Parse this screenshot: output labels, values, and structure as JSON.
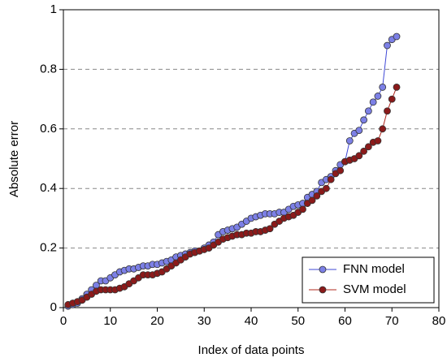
{
  "chart_data": {
    "type": "line",
    "xlabel": "Index of data points",
    "ylabel": "Absolute error",
    "x": [
      1,
      2,
      3,
      4,
      5,
      6,
      7,
      8,
      9,
      10,
      11,
      12,
      13,
      14,
      15,
      16,
      17,
      18,
      19,
      20,
      21,
      22,
      23,
      24,
      25,
      26,
      27,
      28,
      29,
      30,
      31,
      32,
      33,
      34,
      35,
      36,
      37,
      38,
      39,
      40,
      41,
      42,
      43,
      44,
      45,
      46,
      47,
      48,
      49,
      50,
      51,
      52,
      53,
      54,
      55,
      56,
      57,
      58,
      59,
      60,
      61,
      62,
      63,
      64,
      65,
      66,
      67,
      68,
      69,
      70,
      71
    ],
    "series": [
      {
        "name": "FNN model",
        "color": "#3f48d6",
        "marker_color": "#7c80e6",
        "values": [
          0.005,
          0.01,
          0.015,
          0.03,
          0.045,
          0.06,
          0.075,
          0.09,
          0.09,
          0.1,
          0.11,
          0.12,
          0.125,
          0.13,
          0.13,
          0.135,
          0.14,
          0.14,
          0.145,
          0.145,
          0.15,
          0.155,
          0.16,
          0.17,
          0.175,
          0.18,
          0.185,
          0.19,
          0.19,
          0.2,
          0.21,
          0.22,
          0.245,
          0.255,
          0.26,
          0.265,
          0.27,
          0.28,
          0.29,
          0.3,
          0.305,
          0.31,
          0.315,
          0.315,
          0.315,
          0.32,
          0.32,
          0.33,
          0.34,
          0.345,
          0.35,
          0.37,
          0.38,
          0.39,
          0.42,
          0.43,
          0.44,
          0.46,
          0.48,
          0.49,
          0.56,
          0.585,
          0.595,
          0.63,
          0.66,
          0.69,
          0.71,
          0.74,
          0.88,
          0.9,
          0.91
        ]
      },
      {
        "name": "SVM model",
        "color": "#b0281e",
        "marker_color": "#8b1a1a",
        "values": [
          0.01,
          0.015,
          0.02,
          0.025,
          0.035,
          0.045,
          0.055,
          0.06,
          0.06,
          0.06,
          0.06,
          0.065,
          0.07,
          0.08,
          0.09,
          0.1,
          0.11,
          0.11,
          0.11,
          0.115,
          0.12,
          0.13,
          0.14,
          0.15,
          0.16,
          0.17,
          0.18,
          0.185,
          0.19,
          0.195,
          0.2,
          0.21,
          0.22,
          0.23,
          0.235,
          0.24,
          0.245,
          0.245,
          0.25,
          0.25,
          0.255,
          0.255,
          0.26,
          0.265,
          0.28,
          0.29,
          0.3,
          0.305,
          0.31,
          0.32,
          0.33,
          0.35,
          0.36,
          0.375,
          0.39,
          0.4,
          0.43,
          0.45,
          0.46,
          0.49,
          0.495,
          0.5,
          0.51,
          0.525,
          0.54,
          0.555,
          0.56,
          0.6,
          0.66,
          0.7,
          0.74
        ]
      }
    ],
    "xlim": [
      0,
      80
    ],
    "xticks": [
      0,
      10,
      20,
      30,
      40,
      50,
      60,
      70,
      80
    ],
    "ylim": [
      0,
      1
    ],
    "yticks": [
      0,
      0.2,
      0.4,
      0.6,
      0.8,
      1
    ],
    "grid": true,
    "legend": "lower right"
  }
}
